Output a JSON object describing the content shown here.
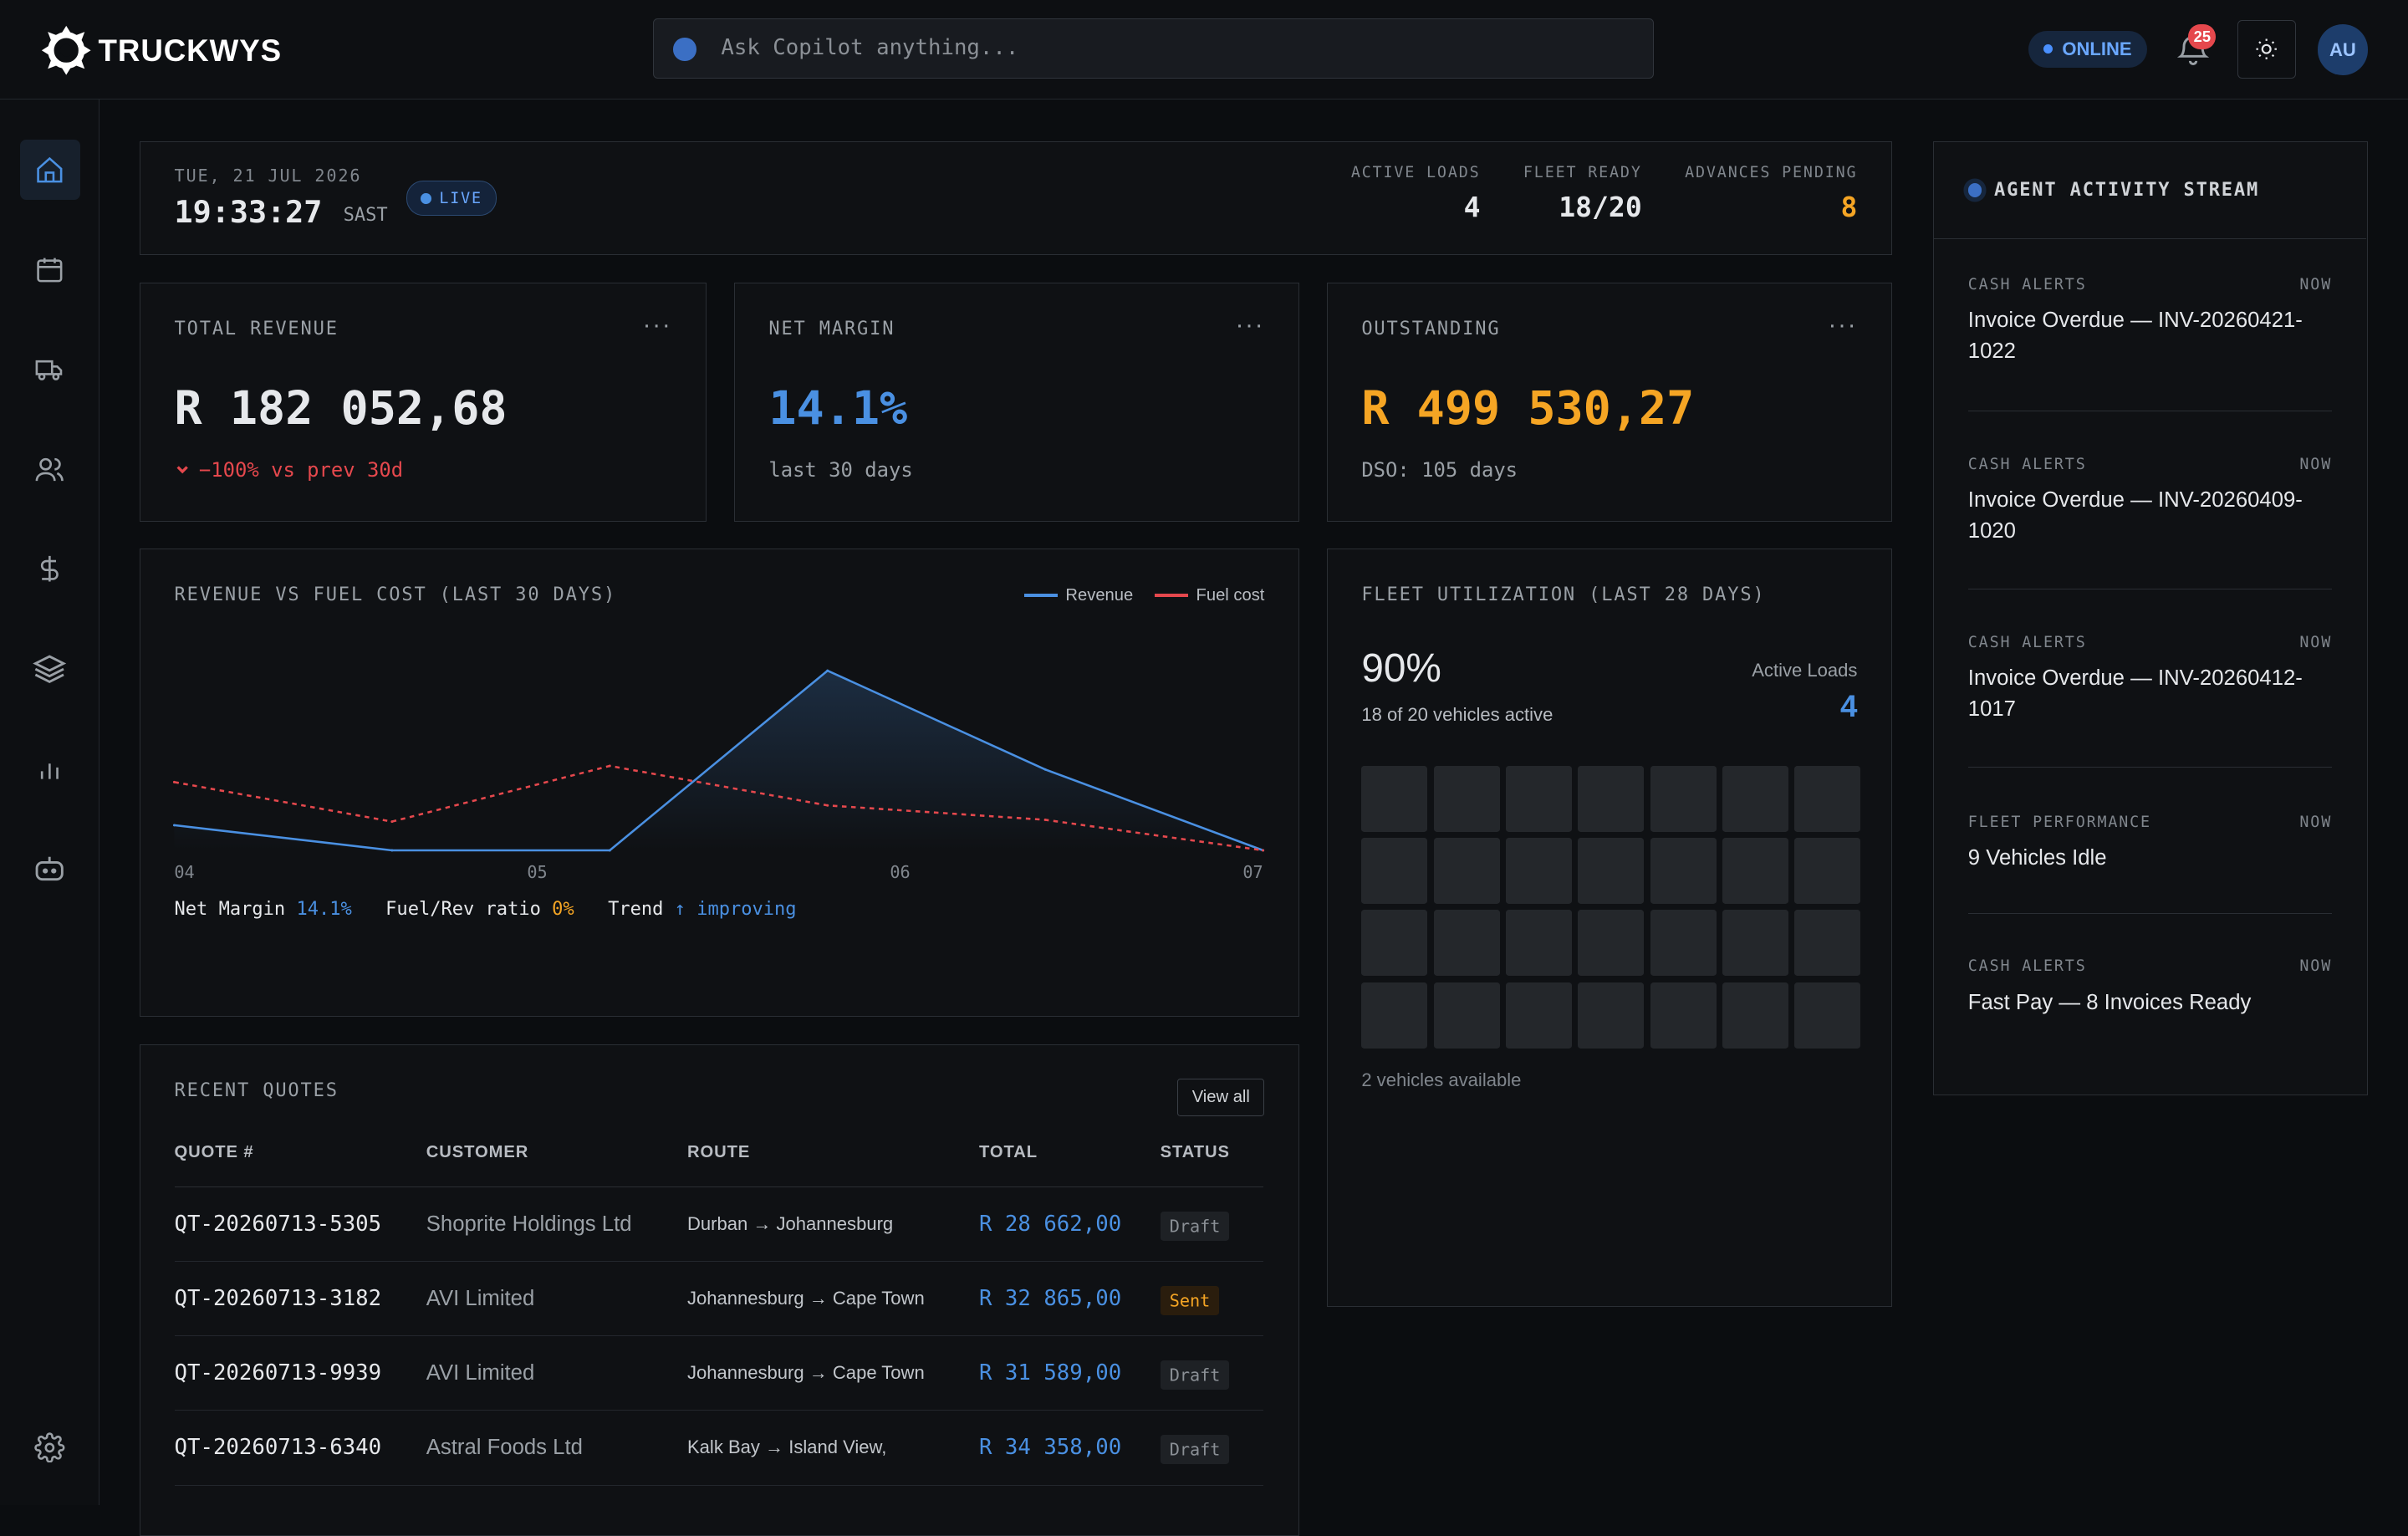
{
  "app": {
    "brand": "TRUCKWYS"
  },
  "search": {
    "placeholder": "Ask Copilot anything..."
  },
  "status": {
    "online": "ONLINE",
    "notifications": "25",
    "avatar": "AU"
  },
  "header": {
    "date": "TUE, 21 JUL 2026",
    "time": "19:33:27",
    "tz": "SAST",
    "live": "LIVE",
    "stats": [
      {
        "label": "ACTIVE LOADS",
        "value": "4"
      },
      {
        "label": "FLEET READY",
        "value": "18/20"
      },
      {
        "label": "ADVANCES PENDING",
        "value": "8"
      }
    ]
  },
  "kpis": {
    "revenue": {
      "title": "TOTAL REVENUE",
      "value": "R 182 052,68",
      "sub": "−100% vs prev 30d"
    },
    "margin": {
      "title": "NET MARGIN",
      "value": "14.1%",
      "sub": "last 30 days"
    },
    "outstanding": {
      "title": "OUTSTANDING",
      "value": "R 499 530,27",
      "sub": "DSO: 105 days"
    }
  },
  "chart": {
    "title": "REVENUE VS FUEL COST (LAST 30 DAYS)",
    "footer": {
      "margin_label": "Net Margin",
      "margin_value": "14.1%",
      "ratio_label": "Fuel/Rev ratio",
      "ratio_value": "0%",
      "trend_label": "Trend",
      "trend_value": "↑ improving"
    }
  },
  "chart_data": {
    "type": "line",
    "title": "REVENUE VS FUEL COST (LAST 30 DAYS)",
    "x": [
      0,
      1,
      2,
      3,
      4,
      5
    ],
    "ticks": [
      "04",
      "05",
      "06",
      "07"
    ],
    "ylim": [
      0,
      1
    ],
    "series": [
      {
        "name": "Revenue",
        "color": "#4a90e2",
        "values": [
          0.14,
          0.0,
          0.0,
          1.0,
          0.45,
          0.0
        ]
      },
      {
        "name": "Fuel cost",
        "color": "#e5484d",
        "dashed": true,
        "values": [
          0.38,
          0.16,
          0.47,
          0.25,
          0.17,
          0.0
        ]
      }
    ],
    "grid": false,
    "legend": "top-right"
  },
  "fleet": {
    "title": "FLEET UTILIZATION (LAST 28 DAYS)",
    "pct": "90%",
    "detail": "18 of 20 vehicles active",
    "active_label": "Active Loads",
    "active_value": "4",
    "footer": "2 vehicles available"
  },
  "quotes": {
    "title": "RECENT QUOTES",
    "view_all": "View all",
    "columns": [
      "QUOTE #",
      "CUSTOMER",
      "ROUTE",
      "TOTAL",
      "STATUS"
    ],
    "rows": [
      {
        "id": "QT-20260713-5305",
        "customer": "Shoprite Holdings Ltd",
        "route": "Durban → Johannesburg",
        "total": "R 28 662,00",
        "status": "Draft"
      },
      {
        "id": "QT-20260713-3182",
        "customer": "AVI Limited",
        "route": "Johannesburg → Cape Town",
        "total": "R 32 865,00",
        "status": "Sent"
      },
      {
        "id": "QT-20260713-9939",
        "customer": "AVI Limited",
        "route": "Johannesburg → Cape Town",
        "total": "R 31 589,00",
        "status": "Draft"
      },
      {
        "id": "QT-20260713-6340",
        "customer": "Astral Foods Ltd",
        "route": "Kalk Bay → Island View,",
        "total": "R 34 358,00",
        "status": "Draft"
      }
    ]
  },
  "feed": {
    "title": "AGENT ACTIVITY STREAM",
    "items": [
      {
        "cat": "CASH ALERTS",
        "time": "NOW",
        "text": "Invoice Overdue — INV-20260421-1022"
      },
      {
        "cat": "CASH ALERTS",
        "time": "NOW",
        "text": "Invoice Overdue — INV-20260409-1020"
      },
      {
        "cat": "CASH ALERTS",
        "time": "NOW",
        "text": "Invoice Overdue — INV-20260412-1017"
      },
      {
        "cat": "FLEET PERFORMANCE",
        "time": "NOW",
        "text": "9 Vehicles Idle"
      },
      {
        "cat": "CASH ALERTS",
        "time": "NOW",
        "text": "Fast Pay — 8 Invoices Ready"
      }
    ]
  },
  "colors": {
    "accent": "#4a90e2",
    "warn": "#f5a524",
    "danger": "#e5484d"
  }
}
